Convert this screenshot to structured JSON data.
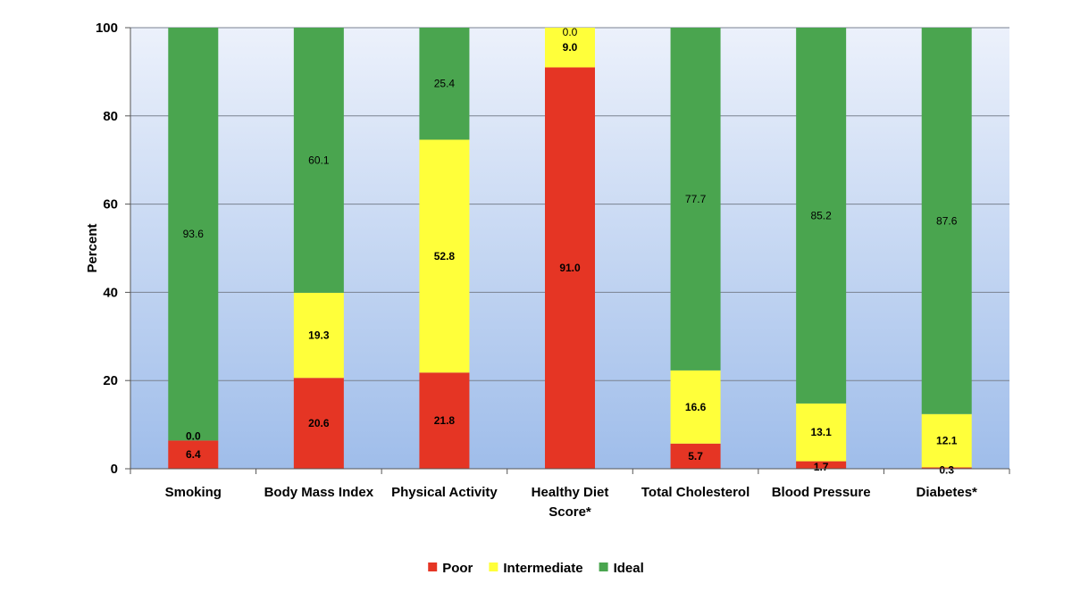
{
  "chart_data": {
    "type": "bar",
    "stacked": true,
    "percent_axis": true,
    "title": "",
    "xlabel": "",
    "ylabel": "Percent",
    "ylim": [
      0,
      100
    ],
    "yticks": [
      0,
      20,
      40,
      60,
      80,
      100
    ],
    "grid": true,
    "legend_position": "bottom",
    "categories": [
      [
        "Smoking"
      ],
      [
        "Body Mass Index"
      ],
      [
        "Physical Activity"
      ],
      [
        "Healthy Diet",
        "Score*"
      ],
      [
        "Total Cholesterol"
      ],
      [
        "Blood Pressure"
      ],
      [
        "Diabetes*"
      ]
    ],
    "series": [
      {
        "name": "Poor",
        "color": "#e53524",
        "values": [
          6.4,
          20.6,
          21.8,
          91.0,
          5.7,
          1.7,
          0.3
        ],
        "labels": [
          "6.4",
          "20.6",
          "21.8",
          "91.0",
          "5.7",
          "1.7",
          "0.3"
        ]
      },
      {
        "name": "Intermediate",
        "color": "#ffff3a",
        "values": [
          0.0,
          19.3,
          52.8,
          9.0,
          16.6,
          13.1,
          12.1
        ],
        "labels": [
          "0.0",
          "19.3",
          "52.8",
          "9.0",
          "16.6",
          "13.1",
          "12.1"
        ]
      },
      {
        "name": "Ideal",
        "color": "#4aa54f",
        "values": [
          93.6,
          60.1,
          25.4,
          0.0,
          77.7,
          85.2,
          87.6
        ],
        "labels": [
          "93.6",
          "60.1",
          "25.4",
          "0.0",
          "77.7",
          "85.2",
          "87.6"
        ]
      }
    ]
  }
}
